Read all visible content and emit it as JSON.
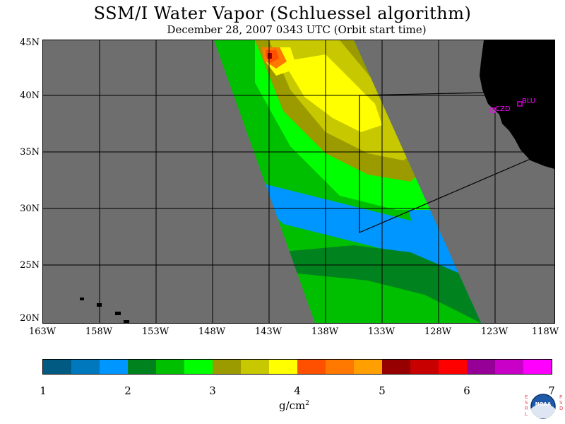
{
  "header": {
    "title": "SSM/I Water Vapor (Schluessel algorithm)",
    "subtitle": "December 28, 2007  0343 UTC  (Orbit start time)"
  },
  "map": {
    "latitude_labels": [
      "45N",
      "40N",
      "35N",
      "30N",
      "25N",
      "20N"
    ],
    "longitude_labels": [
      "163W",
      "158W",
      "153W",
      "148W",
      "143W",
      "138W",
      "133W",
      "128W",
      "123W",
      "118W"
    ],
    "stations": [
      "CZD",
      "BLU"
    ],
    "land_color": "#000000",
    "no_data_color": "#6e6e6e",
    "station_color": "#ff00ff"
  },
  "colorbar": {
    "colors": [
      "#005a82",
      "#0078be",
      "#0096ff",
      "#00821e",
      "#00be00",
      "#00ff00",
      "#9b9b00",
      "#c8c800",
      "#ffff00",
      "#ff5000",
      "#ff7800",
      "#ffa000",
      "#960000",
      "#c80000",
      "#ff0000",
      "#960096",
      "#c800c8",
      "#ff00ff"
    ],
    "tick_labels": [
      "1",
      "2",
      "3",
      "4",
      "5",
      "6",
      "7"
    ],
    "units_main": "g/cm",
    "units_sup": "2"
  },
  "logo": {
    "left_text": "ESRL",
    "right_text": "PSD",
    "center_text": "NOAA"
  }
}
